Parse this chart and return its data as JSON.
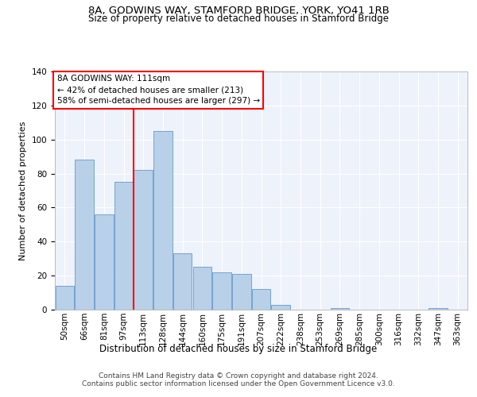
{
  "title1": "8A, GODWINS WAY, STAMFORD BRIDGE, YORK, YO41 1RB",
  "title2": "Size of property relative to detached houses in Stamford Bridge",
  "xlabel": "Distribution of detached houses by size in Stamford Bridge",
  "ylabel": "Number of detached properties",
  "footer1": "Contains HM Land Registry data © Crown copyright and database right 2024.",
  "footer2": "Contains public sector information licensed under the Open Government Licence v3.0.",
  "categories": [
    "50sqm",
    "66sqm",
    "81sqm",
    "97sqm",
    "113sqm",
    "128sqm",
    "144sqm",
    "160sqm",
    "175sqm",
    "191sqm",
    "207sqm",
    "222sqm",
    "238sqm",
    "253sqm",
    "269sqm",
    "285sqm",
    "300sqm",
    "316sqm",
    "332sqm",
    "347sqm",
    "363sqm"
  ],
  "values": [
    14,
    88,
    56,
    75,
    82,
    105,
    33,
    25,
    22,
    21,
    12,
    3,
    0,
    0,
    1,
    0,
    0,
    0,
    0,
    1,
    0
  ],
  "bar_color": "#b8d0e8",
  "bar_edgecolor": "#6699cc",
  "marker_bin_index": 4,
  "marker_label1": "8A GODWINS WAY: 111sqm",
  "marker_label2": "← 42% of detached houses are smaller (213)",
  "marker_label3": "58% of semi-detached houses are larger (297) →",
  "marker_color": "red",
  "annotation_box_edgecolor": "red",
  "ylim": [
    0,
    140
  ],
  "yticks": [
    0,
    20,
    40,
    60,
    80,
    100,
    120,
    140
  ],
  "bg_color": "#eef2fa",
  "grid_color": "#ffffff",
  "title1_fontsize": 9.5,
  "title2_fontsize": 8.5,
  "axis_label_fontsize": 8,
  "tick_fontsize": 7.5,
  "footer_fontsize": 6.5,
  "annotation_fontsize": 7.5
}
